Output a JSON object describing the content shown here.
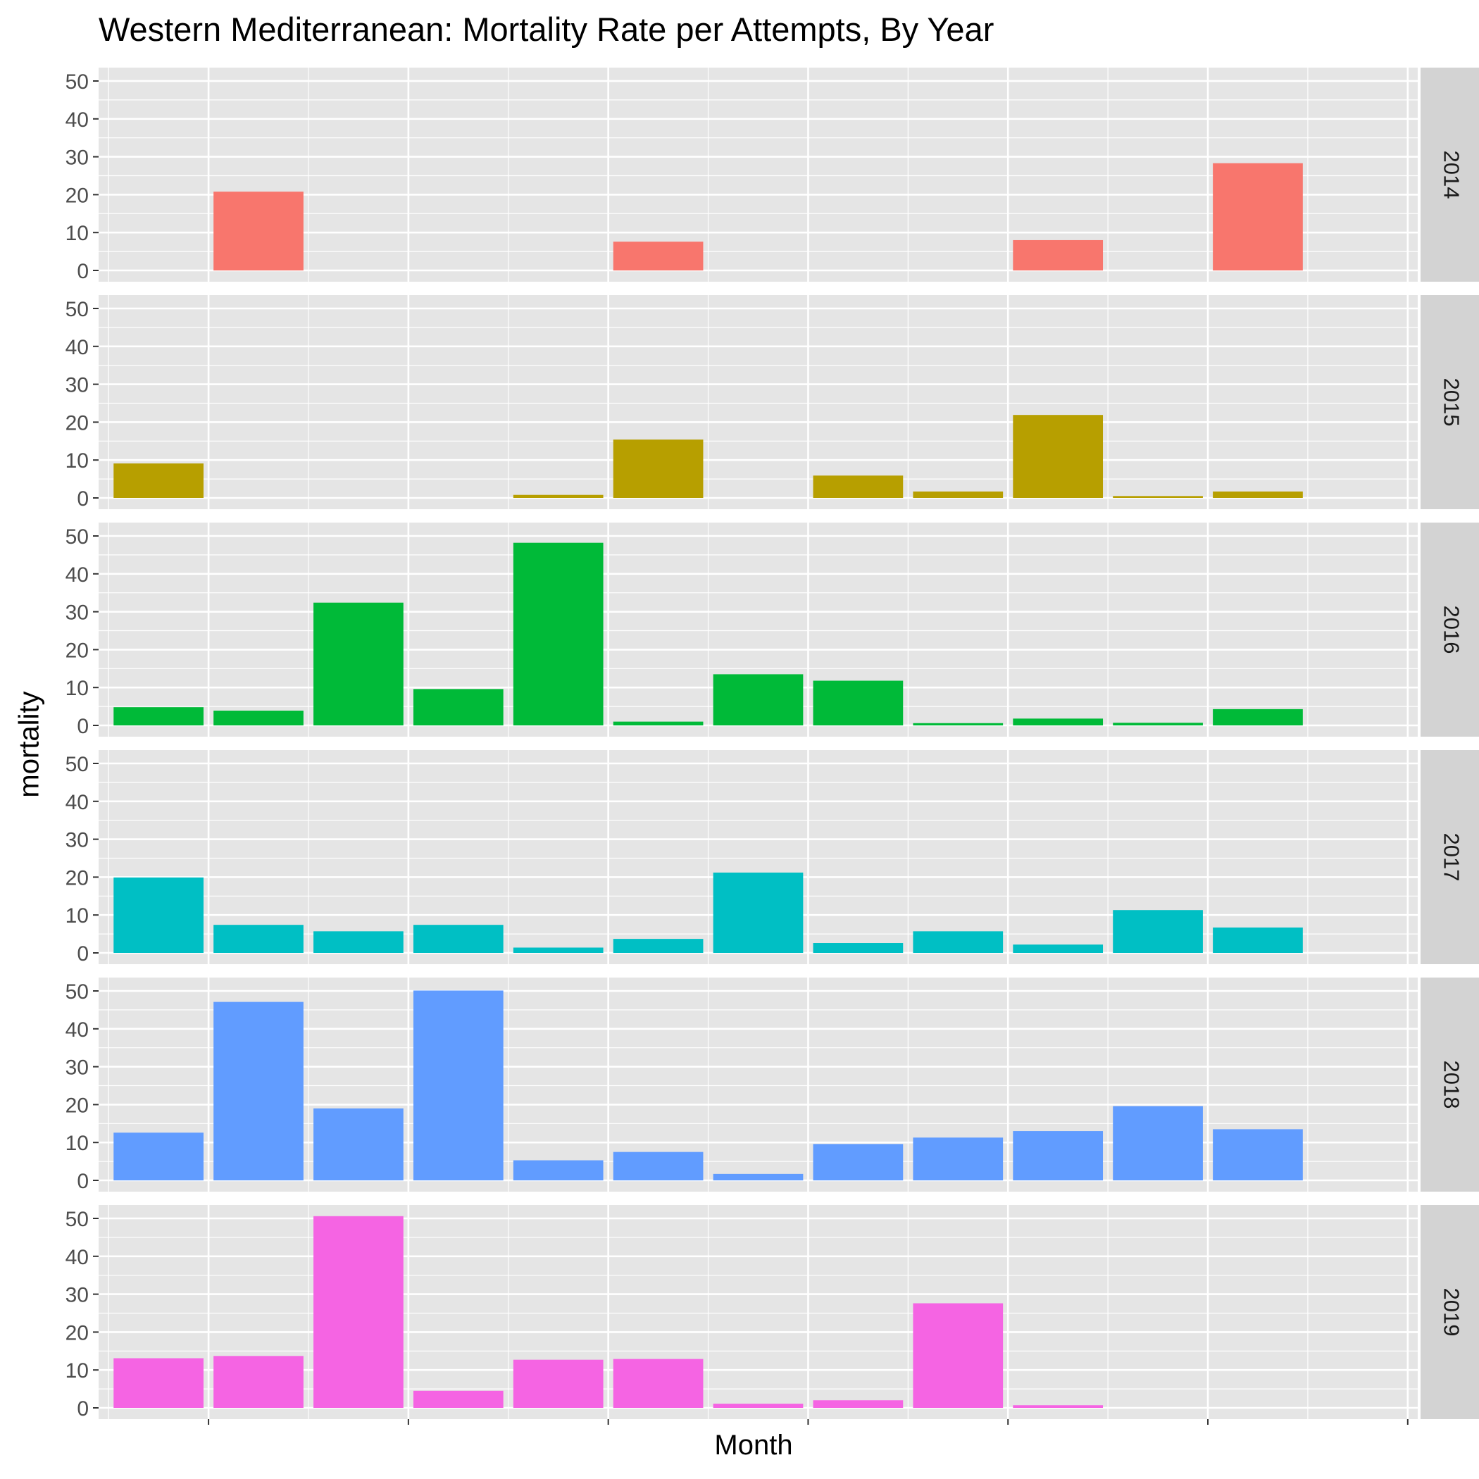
{
  "chart_data": {
    "type": "bar",
    "title": "Western Mediterranean: Mortality Rate per Attempts, By Year",
    "xlabel": "Month",
    "ylabel": "mortality",
    "ylim": [
      0,
      53
    ],
    "yticks": [
      0,
      10,
      20,
      30,
      40,
      50
    ],
    "x_tick_labels_shown": false,
    "facet_labels": [
      "2014",
      "2015",
      "2016",
      "2017",
      "2018",
      "2019"
    ],
    "months": [
      1,
      2,
      3,
      4,
      5,
      6,
      7,
      8,
      9,
      10,
      11,
      12
    ],
    "grid": true,
    "legend": "none",
    "series": [
      {
        "facet": "2014",
        "color": "#F8766D",
        "values": [
          null,
          20.8,
          null,
          null,
          null,
          7.6,
          null,
          null,
          null,
          8.0,
          null,
          28.3
        ]
      },
      {
        "facet": "2015",
        "color": "#B79F00",
        "values": [
          9.1,
          null,
          null,
          null,
          0.8,
          15.4,
          null,
          5.9,
          1.7,
          21.9,
          0.5,
          1.7
        ]
      },
      {
        "facet": "2016",
        "color": "#00BA38",
        "values": [
          4.8,
          3.9,
          32.4,
          9.6,
          48.2,
          1.0,
          13.5,
          11.8,
          0.6,
          1.8,
          0.7,
          4.3
        ]
      },
      {
        "facet": "2017",
        "color": "#00BFC4",
        "values": [
          19.9,
          7.4,
          5.7,
          7.4,
          1.4,
          3.7,
          21.2,
          2.6,
          5.7,
          2.2,
          11.3,
          6.7
        ]
      },
      {
        "facet": "2018",
        "color": "#619CFF",
        "values": [
          12.6,
          47.1,
          19.0,
          50.1,
          5.3,
          7.5,
          1.7,
          9.6,
          11.3,
          13.0,
          19.6,
          13.5
        ]
      },
      {
        "facet": "2019",
        "color": "#F564E3",
        "values": [
          13.1,
          13.7,
          50.6,
          4.5,
          12.7,
          12.9,
          1.1,
          2.0,
          27.6,
          0.7,
          null,
          null
        ]
      }
    ]
  },
  "colors": {
    "panel_background": "#E5E5E5",
    "grid_line": "#FFFFFF",
    "strip_background": "#D3D3D3",
    "axis_text": "#4D4D4D",
    "tick_mark": "#333333"
  }
}
